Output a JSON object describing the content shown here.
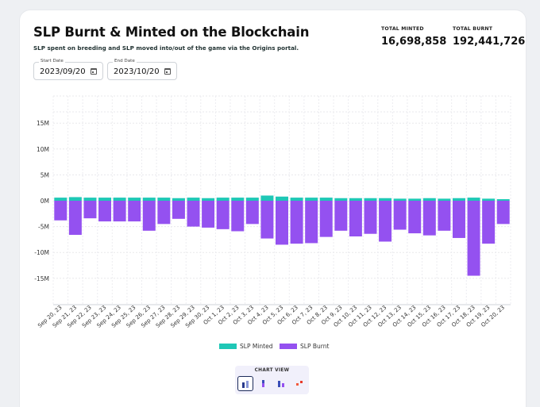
{
  "header": {
    "title": "SLP Burnt & Minted on the Blockchain",
    "subtitle": "SLP spent on breeding and SLP moved into/out of the game via the Origins portal."
  },
  "stats": {
    "minted_label": "TOTAL MINTED",
    "minted_value": "16,698,858",
    "burnt_label": "TOTAL BURNT",
    "burnt_value": "192,441,726"
  },
  "filters": {
    "start_label": "Start Date",
    "start_value": "2023/09/20",
    "end_label": "End Date",
    "end_value": "2023/10/20"
  },
  "chart_view": {
    "label": "CHART VIEW",
    "options": [
      "grouped-bars-icon",
      "stacked-bars-icon",
      "side-bars-icon",
      "waterfall-icon"
    ],
    "active": 0
  },
  "colors": {
    "minted": "#1fc7b6",
    "burnt": "#9451f0"
  },
  "chart_data": {
    "type": "bar",
    "title": "SLP Burnt & Minted on the Blockchain",
    "xlabel": "",
    "ylabel": "",
    "ylim": [
      -20,
      20
    ],
    "yticks": [
      -15,
      -10,
      -5,
      0,
      5,
      10,
      15
    ],
    "ytick_labels": [
      "-15M",
      "-10M",
      "-5M",
      "0M",
      "5M",
      "10M",
      "15M"
    ],
    "categories": [
      "Sep 20, 23",
      "Sep 21, 23",
      "Sep 22, 23",
      "Sep 23, 23",
      "Sep 24, 23",
      "Sep 25, 23",
      "Sep 26, 23",
      "Sep 27, 23",
      "Sep 28, 23",
      "Sep 29, 23",
      "Sep 30, 23",
      "Oct 1, 23",
      "Oct 2, 23",
      "Oct 3, 23",
      "Oct 4, 23",
      "Oct 5, 23",
      "Oct 6, 23",
      "Oct 7, 23",
      "Oct 8, 23",
      "Oct 9, 23",
      "Oct 10, 23",
      "Oct 11, 23",
      "Oct 12, 23",
      "Oct 13, 23",
      "Oct 14, 23",
      "Oct 15, 23",
      "Oct 16, 23",
      "Oct 17, 23",
      "Oct 18, 23",
      "Oct 19, 23",
      "Oct 20, 23"
    ],
    "series": [
      {
        "name": "SLP Minted",
        "values": [
          0.6,
          0.7,
          0.6,
          0.6,
          0.6,
          0.6,
          0.6,
          0.6,
          0.5,
          0.6,
          0.5,
          0.6,
          0.6,
          0.6,
          1.0,
          0.8,
          0.6,
          0.6,
          0.6,
          0.5,
          0.5,
          0.5,
          0.5,
          0.4,
          0.4,
          0.5,
          0.4,
          0.5,
          0.6,
          0.4,
          0.3
        ]
      },
      {
        "name": "SLP Burnt",
        "values": [
          -3.8,
          -6.6,
          -3.4,
          -4.0,
          -4.0,
          -4.0,
          -5.8,
          -4.5,
          -3.5,
          -5.0,
          -5.2,
          -5.5,
          -5.9,
          -4.5,
          -7.3,
          -8.5,
          -8.3,
          -8.2,
          -7.0,
          -5.8,
          -6.9,
          -6.4,
          -7.9,
          -5.6,
          -6.3,
          -6.7,
          -5.8,
          -7.2,
          -14.5,
          -8.3,
          -4.5
        ]
      }
    ],
    "legend": [
      "SLP Minted",
      "SLP Burnt"
    ],
    "legend_position": "bottom",
    "grid": true
  }
}
